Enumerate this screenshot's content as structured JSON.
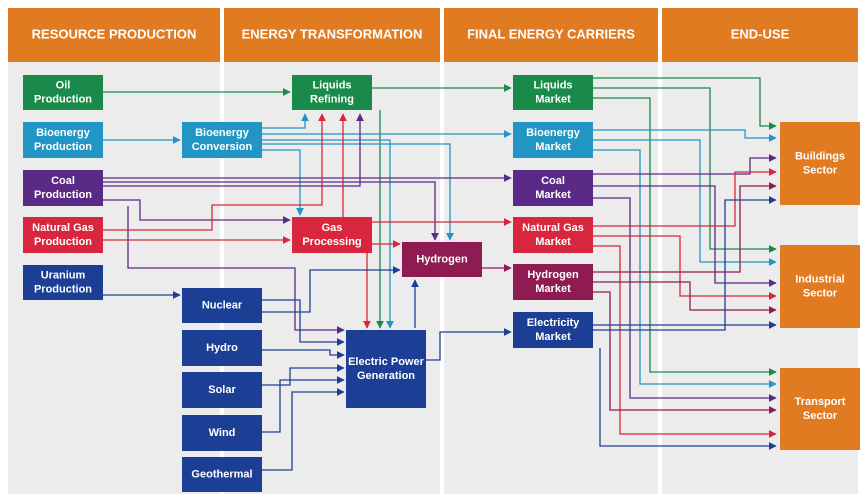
{
  "header": {
    "columns": [
      "RESOURCE PRODUCTION",
      "ENERGY TRANSFORMATION",
      "FINAL ENERGY CARRIERS",
      "END-USE"
    ]
  },
  "nodes": [
    {
      "label": [
        "Oil",
        "Production"
      ]
    },
    {
      "label": [
        "Bioenergy",
        "Production"
      ]
    },
    {
      "label": [
        "Coal",
        "Production"
      ]
    },
    {
      "label": [
        "Natural Gas",
        "Production"
      ]
    },
    {
      "label": [
        "Uranium",
        "Production"
      ]
    },
    {
      "label": [
        "Bioenergy",
        "Conversion"
      ]
    },
    {
      "label": [
        "Liquids",
        "Refining"
      ]
    },
    {
      "label": [
        "Gas",
        "Processing"
      ]
    },
    {
      "label": [
        "Hydrogen"
      ]
    },
    {
      "label": [
        "Nuclear"
      ]
    },
    {
      "label": [
        "Hydro"
      ]
    },
    {
      "label": [
        "Solar"
      ]
    },
    {
      "label": [
        "Wind"
      ]
    },
    {
      "label": [
        "Geothermal"
      ]
    },
    {
      "label": [
        "Electric Power",
        "Generation"
      ]
    },
    {
      "label": [
        "Liquids",
        "Market"
      ]
    },
    {
      "label": [
        "Bioenergy",
        "Market"
      ]
    },
    {
      "label": [
        "Coal",
        "Market"
      ]
    },
    {
      "label": [
        "Natural Gas",
        "Market"
      ]
    },
    {
      "label": [
        "Hydrogen",
        "Market"
      ]
    },
    {
      "label": [
        "Electricity",
        "Market"
      ]
    },
    {
      "label": [
        "Buildings",
        "Sector"
      ]
    },
    {
      "label": [
        "Industrial",
        "Sector"
      ]
    },
    {
      "label": [
        "Transport",
        "Sector"
      ]
    }
  ]
}
